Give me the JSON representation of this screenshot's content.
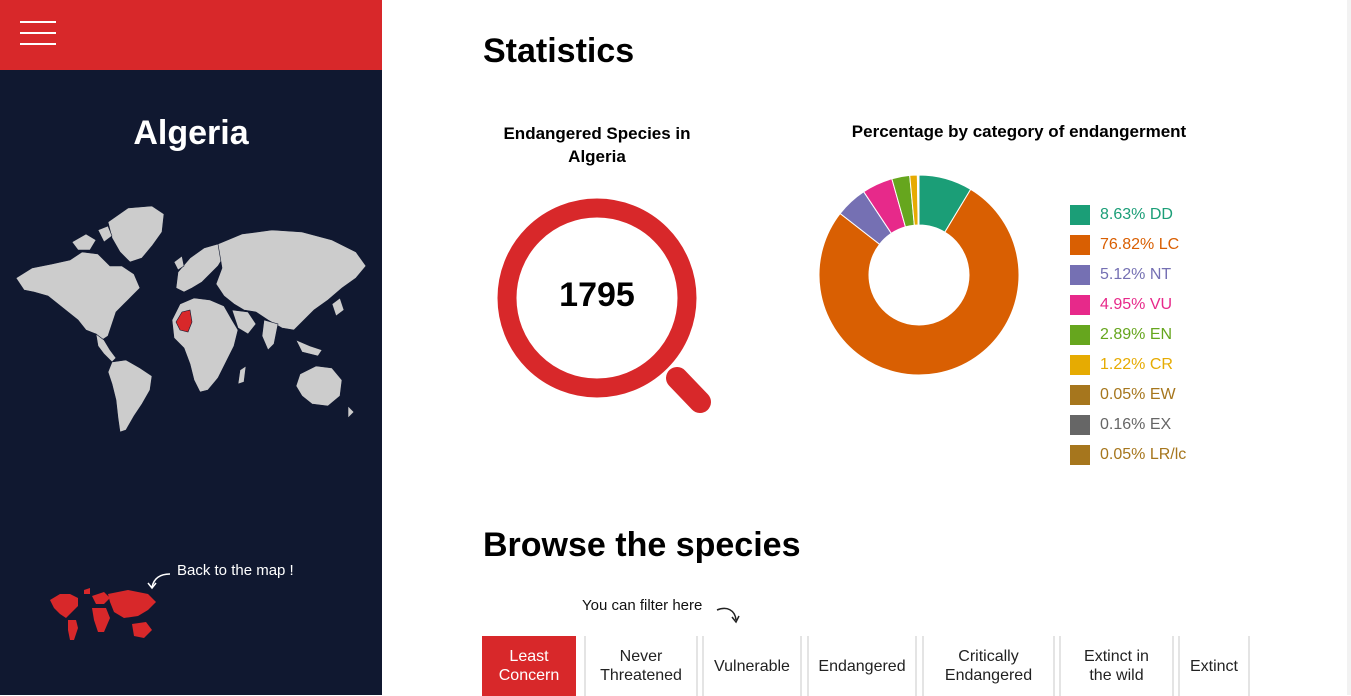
{
  "sidebar": {
    "country": "Algeria",
    "back_link": "Back to the map !"
  },
  "statistics": {
    "heading": "Statistics",
    "count_title": "Endangered Species in Algeria",
    "count_value": "1795",
    "percentage_title": "Percentage by category of endangerment"
  },
  "chart_data": {
    "type": "pie",
    "title": "Percentage by category of endangerment",
    "categories": [
      "DD",
      "LC",
      "NT",
      "VU",
      "EN",
      "CR",
      "EW",
      "EX",
      "LR/lc"
    ],
    "values": [
      8.63,
      76.82,
      5.12,
      4.95,
      2.89,
      1.22,
      0.05,
      0.16,
      0.05
    ],
    "labels": [
      "8.63% DD",
      "76.82% LC",
      "5.12% NT",
      "4.95% VU",
      "2.89% EN",
      "1.22% CR",
      "0.05% EW",
      "0.16% EX",
      "0.05% LR/lc"
    ],
    "colors": [
      "#1b9e77",
      "#d95f02",
      "#7570b3",
      "#e7298a",
      "#66a61e",
      "#e6ab02",
      "#a6761d",
      "#666666",
      "#a6761d"
    ],
    "donut": true,
    "legend_position": "right"
  },
  "browse": {
    "heading": "Browse the species",
    "filter_hint": "You can filter here",
    "filters": [
      {
        "line1": "Least",
        "line2": "Concern"
      },
      {
        "line1": "Never",
        "line2": "Threatened"
      },
      {
        "line1": "Vulnerable",
        "line2": ""
      },
      {
        "line1": "Endangered",
        "line2": ""
      },
      {
        "line1": "Critically",
        "line2": "Endangered"
      },
      {
        "line1": "Extinct in",
        "line2": "the wild"
      },
      {
        "line1": "Extinct",
        "line2": ""
      }
    ],
    "active_filter": "Least Concern"
  },
  "colors": {
    "accent": "#d8282a",
    "sidebar_bg": "#101830",
    "map_land": "#cccccc"
  }
}
